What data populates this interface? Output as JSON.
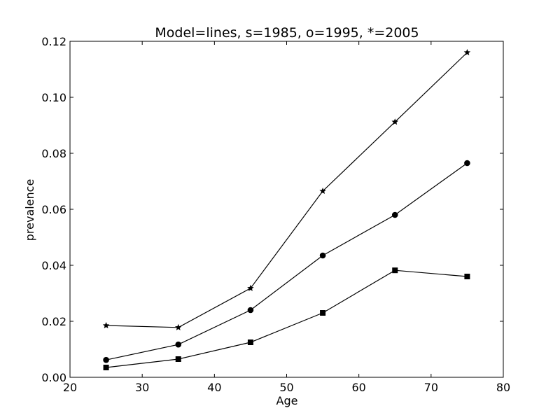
{
  "chart_data": {
    "type": "line",
    "title": "Model=lines, s=1985, o=1995, *=2005",
    "xlabel": "Age",
    "ylabel": "prevalence",
    "xlim": [
      20,
      80
    ],
    "ylim": [
      0,
      0.12
    ],
    "xticks": [
      "20",
      "30",
      "40",
      "50",
      "60",
      "70",
      "80"
    ],
    "yticks": [
      "0.00",
      "0.02",
      "0.04",
      "0.06",
      "0.08",
      "0.10",
      "0.12"
    ],
    "grid": false,
    "x": [
      25,
      35,
      45,
      55,
      65,
      75
    ],
    "series": [
      {
        "marker": "square",
        "values": [
          0.0035,
          0.0065,
          0.0125,
          0.023,
          0.0382,
          0.036
        ]
      },
      {
        "marker": "circle",
        "values": [
          0.0062,
          0.0117,
          0.024,
          0.0435,
          0.058,
          0.0765
        ]
      },
      {
        "marker": "star",
        "values": [
          0.0185,
          0.0178,
          0.0318,
          0.0665,
          0.0912,
          0.116
        ]
      }
    ],
    "line_color": "#000000",
    "marker_color": "#000000"
  }
}
